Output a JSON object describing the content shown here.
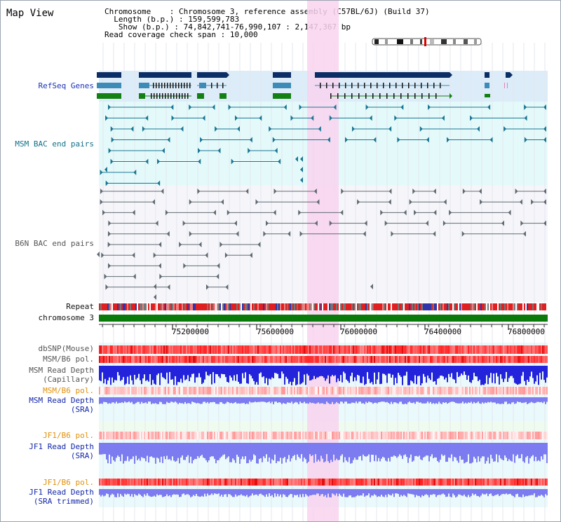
{
  "page": {
    "title": "Map View"
  },
  "info": {
    "chromosome_label": "Chromosome",
    "chromosome_value": "Chromosome 3, reference assembly (C57BL/6J) (Build 37)",
    "length_label": "Length (b.p.)",
    "length_value": "159,599,783",
    "show_label": "Show (b.p.)",
    "show_value": "74,842,741-76,990,107 : 2,147,367 bp",
    "read_span_label": "Read coverage check span",
    "read_span_value": "10,000"
  },
  "tracks": {
    "refseq": "RefSeq Genes",
    "msm_bac": "MSM BAC end pairs",
    "b6n_bac": "B6N BAC end pairs",
    "repeat": "Repeat",
    "chromosome": "chromosome 3",
    "dbsnp": "dbSNP(Mouse)",
    "msm_b6_pol_1": "MSM/B6 pol.",
    "msm_read_depth_cap_1": "MSM Read Depth",
    "msm_read_depth_cap_2": "(Capillary)",
    "msm_b6_pol_2": "MSM/B6 pol.",
    "msm_read_depth_sra_1": "MSM Read Depth",
    "msm_read_depth_sra_2": "(SRA)",
    "jf1_b6_pol_1": "JF1/B6 pol.",
    "jf1_read_depth_sra_1": "JF1 Read Depth",
    "jf1_read_depth_sra_2": "(SRA)",
    "jf1_b6_pol_2": "JF1/B6 pol.",
    "jf1_read_depth_trim_1": "JF1 Read Depth",
    "jf1_read_depth_trim_2": "(SRA trimmed)"
  },
  "axis": {
    "ticks": [
      "75200000",
      "75600000",
      "76000000",
      "76400000",
      "76800000"
    ]
  },
  "colors": {
    "refseq_bg": "#dcecf8",
    "msm_bg": "#e4fafa",
    "b6n_bg": "#f6f6fa",
    "highlight": "#f8d4ee",
    "chromosome_bar": "#0a7a0a",
    "gene_dark": "#0c2e66",
    "gene_mid": "#3d8cb8",
    "gene_green": "#138013",
    "teal": "#1a7592",
    "gray": "#5f6a72",
    "depth_dark": "#2323dc",
    "depth_light": "#7c7cf0"
  }
}
